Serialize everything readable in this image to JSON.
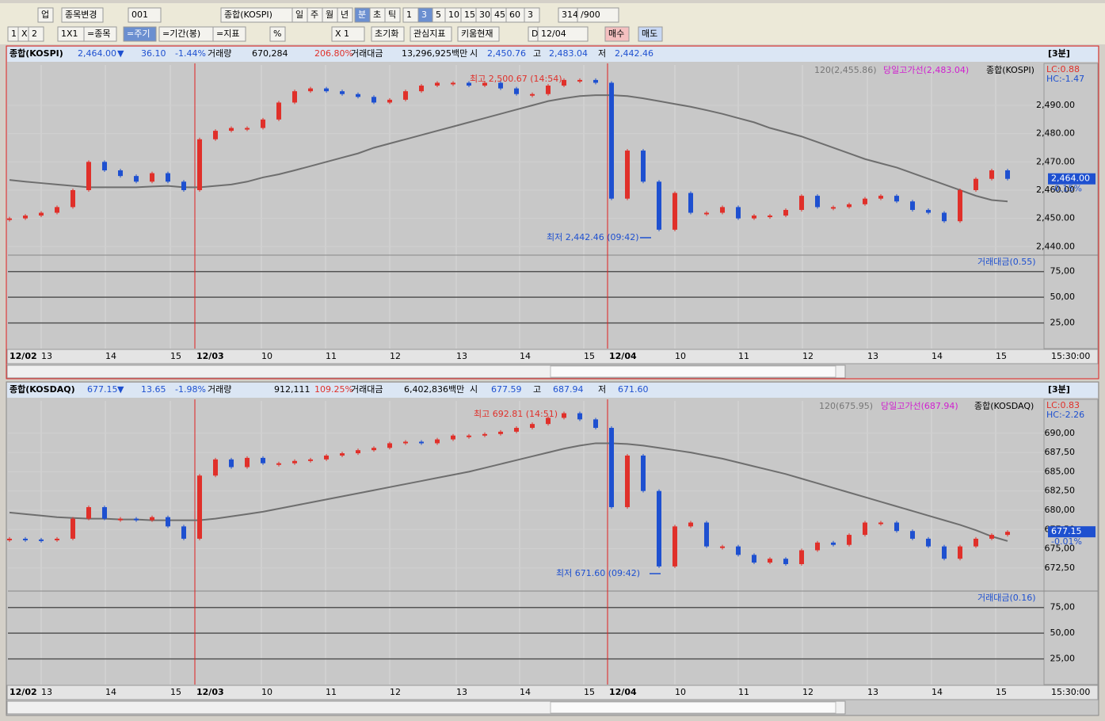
{
  "toolbar": {
    "row1": [
      "업",
      "종목변경",
      "001",
      "종합(KOSPI)",
      "일",
      "주",
      "월",
      "년",
      "분",
      "초",
      "틱",
      "1",
      "3",
      "5",
      "10",
      "15",
      "30",
      "45",
      "60",
      "3",
      "314",
      "/900"
    ],
    "row2": [
      "1",
      "X",
      "2",
      "1X1",
      "=종목",
      "=주기",
      "=기간(봉)",
      "=지표",
      "%",
      "X 1",
      "초기화",
      "관심지표",
      "키움현재",
      "D",
      "12/04",
      "매수",
      "매도"
    ]
  },
  "chart_data": [
    {
      "type": "candlestick",
      "header": {
        "name": "종합(KOSPI)",
        "price": "2,464.00",
        "arrow": "▼",
        "change": "36.10",
        "change_pct": "-1.44%",
        "vol_label": "거래량",
        "volume": "670,284",
        "vol_pct": "206.80%",
        "amt_label": "거래대금",
        "amount": "13,296,925백만",
        "open_label": "시",
        "open": "2,450.76",
        "high_label": "고",
        "high": "2,483.04",
        "low_label": "저",
        "low": "2,442.46",
        "period": "[3분]"
      },
      "legend": {
        "ma": "120(2,455.86)",
        "high_line": "당일고가선(2,483.04)",
        "symbol": "종합(KOSPI)",
        "lc": "LC:0.88",
        "hc": "HC:-1.47"
      },
      "annotations": {
        "high": "최고 2,500.67 (14:54)",
        "low": "최저 2,442.46 (09:42)",
        "price_tag": "2,464.00",
        "price_pct": "-0.15%",
        "sub_title": "거래대금(0.55)"
      },
      "xlabels": [
        "12/02",
        "13",
        "14",
        "15",
        "12/03",
        "10",
        "11",
        "12",
        "13",
        "14",
        "15",
        "12/04",
        "10",
        "11",
        "12",
        "13",
        "14",
        "15"
      ],
      "x_end_label": "15:30:00",
      "ylim": [
        2437,
        2504.3
      ],
      "yticks": [
        {
          "value": 2440,
          "label": "2,440.00"
        },
        {
          "value": 2450,
          "label": "2,450.00"
        },
        {
          "value": 2460,
          "label": "2,460.00"
        },
        {
          "value": 2470,
          "label": "2,470.00"
        },
        {
          "value": 2480,
          "label": "2,480.00"
        },
        {
          "value": 2490,
          "label": "2,490.00"
        }
      ],
      "sub_ylim": [
        0,
        91
      ],
      "sub_yticks": [
        {
          "value": 25,
          "label": "25,00"
        },
        {
          "value": 50,
          "label": "50,00"
        },
        {
          "value": 75,
          "label": "75,00"
        }
      ],
      "series": [
        {
          "color": "#e0302a",
          "down_color": "#1e50d0",
          "values": [
            2450,
            2451,
            2452,
            2454,
            2460,
            2470,
            2467,
            2465,
            2463,
            2466,
            2463,
            2460,
            2478,
            2481,
            2482,
            2482,
            2485,
            2491,
            2495,
            2496,
            2495,
            2494,
            2493,
            2491,
            2492,
            2495,
            2497,
            2498,
            2498,
            2497,
            2498,
            2496,
            2494,
            2494,
            2497,
            2499,
            2499,
            2498,
            2457,
            2474,
            2463,
            2446,
            2459,
            2452,
            2452,
            2454,
            2450,
            2451,
            2451,
            2453,
            2458,
            2454,
            2454,
            2455,
            2457,
            2458,
            2456,
            2453,
            2452,
            2449,
            2460,
            2464,
            2467,
            2464
          ]
        },
        {
          "color": "#6e6e6e",
          "values": [
            2463.6,
            2463.0,
            2462.5,
            2462.0,
            2461.5,
            2461.0,
            2461.0,
            2461.0,
            2461.0,
            2461.3,
            2461.5,
            2461.0,
            2461.0,
            2461.5,
            2462.0,
            2463.0,
            2464.5,
            2465.6,
            2467.0,
            2468.5,
            2470.0,
            2471.5,
            2473.0,
            2475.0,
            2476.5,
            2478.0,
            2479.5,
            2481.0,
            2482.5,
            2484.0,
            2485.5,
            2487.0,
            2488.5,
            2490.0,
            2491.5,
            2492.5,
            2493.3,
            2493.6,
            2493.6,
            2493.3,
            2492.5,
            2491.5,
            2490.5,
            2489.5,
            2488.3,
            2487.0,
            2485.5,
            2484.0,
            2482.0,
            2480.5,
            2479.0,
            2477.0,
            2475.0,
            2473.0,
            2471.0,
            2469.5,
            2468.0,
            2466.0,
            2464.0,
            2462.0,
            2460.0,
            2458.0,
            2456.5,
            2456.0
          ]
        }
      ]
    },
    {
      "type": "candlestick",
      "header": {
        "name": "종합(KOSDAQ)",
        "price": "677.15",
        "arrow": "▼",
        "change": "13.65",
        "change_pct": "-1.98%",
        "vol_label": "거래량",
        "volume": "912,111",
        "vol_pct": "109.25%",
        "amt_label": "거래대금",
        "amount": "6,402,836백만",
        "open_label": "시",
        "open": "677.59",
        "high_label": "고",
        "high": "687.94",
        "low_label": "저",
        "low": "671.60",
        "period": "[3분]"
      },
      "legend": {
        "ma": "120(675.95)",
        "high_line": "당일고가선(687.94)",
        "symbol": "종합(KOSDAQ)",
        "lc": "LC:0.83",
        "hc": "HC:-2.26"
      },
      "annotations": {
        "high": "최고 692.81 (14:51)",
        "low": "최저 671.60 (09:42)",
        "price_tag": "677.15",
        "price_pct": "-0.01%",
        "sub_title": "거래대금(0.16)"
      },
      "xlabels": [
        "12/02",
        "13",
        "14",
        "15",
        "12/03",
        "10",
        "11",
        "12",
        "13",
        "14",
        "15",
        "12/04",
        "10",
        "11",
        "12",
        "13",
        "14",
        "15"
      ],
      "x_end_label": "15:30:00",
      "ylim": [
        669.5,
        694.2
      ],
      "yticks": [
        {
          "value": 672.5,
          "label": "672,50"
        },
        {
          "value": 675,
          "label": "675,00"
        },
        {
          "value": 677.5,
          "label": "677,50"
        },
        {
          "value": 680,
          "label": "680,00"
        },
        {
          "value": 682.5,
          "label": "682,50"
        },
        {
          "value": 685,
          "label": "685,00"
        },
        {
          "value": 687.5,
          "label": "687,50"
        },
        {
          "value": 690,
          "label": "690,00"
        }
      ],
      "sub_ylim": [
        0,
        91
      ],
      "sub_yticks": [
        {
          "value": 25,
          "label": "25,00"
        },
        {
          "value": 50,
          "label": "50,00"
        },
        {
          "value": 75,
          "label": "75,00"
        }
      ],
      "series": [
        {
          "color": "#e0302a",
          "down_color": "#1e50d0",
          "values": [
            676.3,
            676.2,
            676.1,
            676.3,
            678.9,
            680.4,
            678.9,
            678.9,
            678.7,
            679.1,
            677.9,
            676.3,
            684.5,
            686.6,
            685.6,
            686.8,
            686.1,
            686.1,
            686.4,
            686.6,
            687.1,
            687.4,
            687.8,
            688.1,
            688.7,
            688.9,
            688.7,
            689.2,
            689.7,
            689.7,
            689.9,
            690.2,
            690.7,
            691.2,
            692.0,
            692.6,
            691.8,
            690.7,
            680.4,
            687.1,
            682.5,
            672.7,
            677.9,
            678.4,
            675.3,
            675.3,
            674.2,
            673.2,
            673.7,
            673.0,
            674.8,
            675.8,
            675.5,
            676.8,
            678.4,
            678.4,
            677.3,
            676.3,
            675.3,
            673.7,
            675.3,
            676.3,
            676.8,
            677.2
          ]
        },
        {
          "color": "#6e6e6e",
          "values": [
            679.7,
            679.5,
            679.3,
            679.1,
            679.0,
            678.9,
            678.9,
            678.8,
            678.8,
            678.7,
            678.7,
            678.7,
            678.7,
            678.9,
            679.2,
            679.5,
            679.8,
            680.2,
            680.6,
            681.0,
            681.4,
            681.8,
            682.2,
            682.6,
            683.0,
            683.4,
            683.8,
            684.2,
            684.6,
            685.0,
            685.5,
            686.0,
            686.5,
            687.0,
            687.5,
            688.0,
            688.4,
            688.7,
            688.7,
            688.6,
            688.4,
            688.1,
            687.8,
            687.5,
            687.1,
            686.7,
            686.2,
            685.7,
            685.2,
            684.7,
            684.1,
            683.5,
            682.9,
            682.3,
            681.7,
            681.1,
            680.5,
            679.9,
            679.3,
            678.7,
            678.1,
            677.4,
            676.6,
            676.0
          ]
        }
      ]
    }
  ]
}
